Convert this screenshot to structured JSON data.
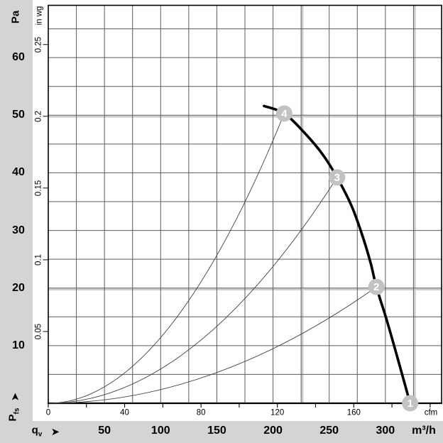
{
  "colors": {
    "band": "#d4d4d4",
    "grid": "#5c5c5c",
    "grid_light": "#c9c9c9",
    "frame": "#000000",
    "curve": "#000000",
    "system_curve": "#3f3f3f",
    "marker_fill": "#c2c2c2",
    "marker_text": "#ffffff"
  },
  "icons": {
    "flow_arrow": "➤",
    "pressure_arrow": "➤"
  },
  "units": {
    "pressure_metric": "Pa",
    "pressure_imperial": "in wg",
    "flow_metric": "m³/h",
    "flow_imperial": "cfm",
    "flow_symbol": {
      "base": "q",
      "sub": "v"
    },
    "pressure_symbol": {
      "base": "P",
      "sub": "fs"
    }
  },
  "chart_data": {
    "type": "line",
    "x_axis": {
      "symbol": "qv",
      "unit_bottom": "m³/h",
      "unit_top": "cfm",
      "m3h_ticks": [
        "50",
        "100",
        "150",
        "200",
        "250",
        "300"
      ],
      "cfm_ticks": [
        "0",
        "40",
        "80",
        "120",
        "160"
      ],
      "cfm_minor_tick_step": 20,
      "cfm_minor_tick_max": 200,
      "m3h_range": [
        0,
        350
      ],
      "m3h_grid_step": 25
    },
    "y_axis": {
      "symbol": "Pfs",
      "unit_left": "Pa",
      "unit_inner": "in wg",
      "pa_ticks": [
        "60",
        "50",
        "40",
        "30",
        "20",
        "10"
      ],
      "inwg_ticks": [
        "0.25",
        "0.2",
        "0.15",
        "0.1",
        "0.05"
      ],
      "pa_range": [
        0,
        69
      ],
      "pa_grid_step": 5
    },
    "grid": "on",
    "series": [
      {
        "name": "fan-curve",
        "style": "thick",
        "points_m3h_pa": [
          [
            192,
            51.6
          ],
          [
            210,
            50.3
          ],
          [
            228.7,
            46.8
          ],
          [
            244.5,
            43.1
          ],
          [
            257,
            39.2
          ],
          [
            269.8,
            34.3
          ],
          [
            279.2,
            29.3
          ],
          [
            286.8,
            24.4
          ],
          [
            292,
            20.2
          ],
          [
            301.4,
            14.3
          ],
          [
            310.9,
            7.8
          ],
          [
            322,
            0
          ]
        ]
      },
      {
        "name": "system-curve-4",
        "style": "thin-parabola",
        "end_m3h_pa": [
          210,
          50.3
        ]
      },
      {
        "name": "system-curve-3",
        "style": "thin-parabola",
        "end_m3h_pa": [
          257,
          39.2
        ]
      },
      {
        "name": "system-curve-2",
        "style": "thin-parabola",
        "end_m3h_pa": [
          292,
          20.2
        ]
      }
    ],
    "operating_points": [
      {
        "label": "1",
        "m3h": 322,
        "pa": 0
      },
      {
        "label": "2",
        "m3h": 292,
        "pa": 20.2
      },
      {
        "label": "3",
        "m3h": 257,
        "pa": 39.2
      },
      {
        "label": "4",
        "m3h": 210,
        "pa": 50.3
      }
    ]
  }
}
